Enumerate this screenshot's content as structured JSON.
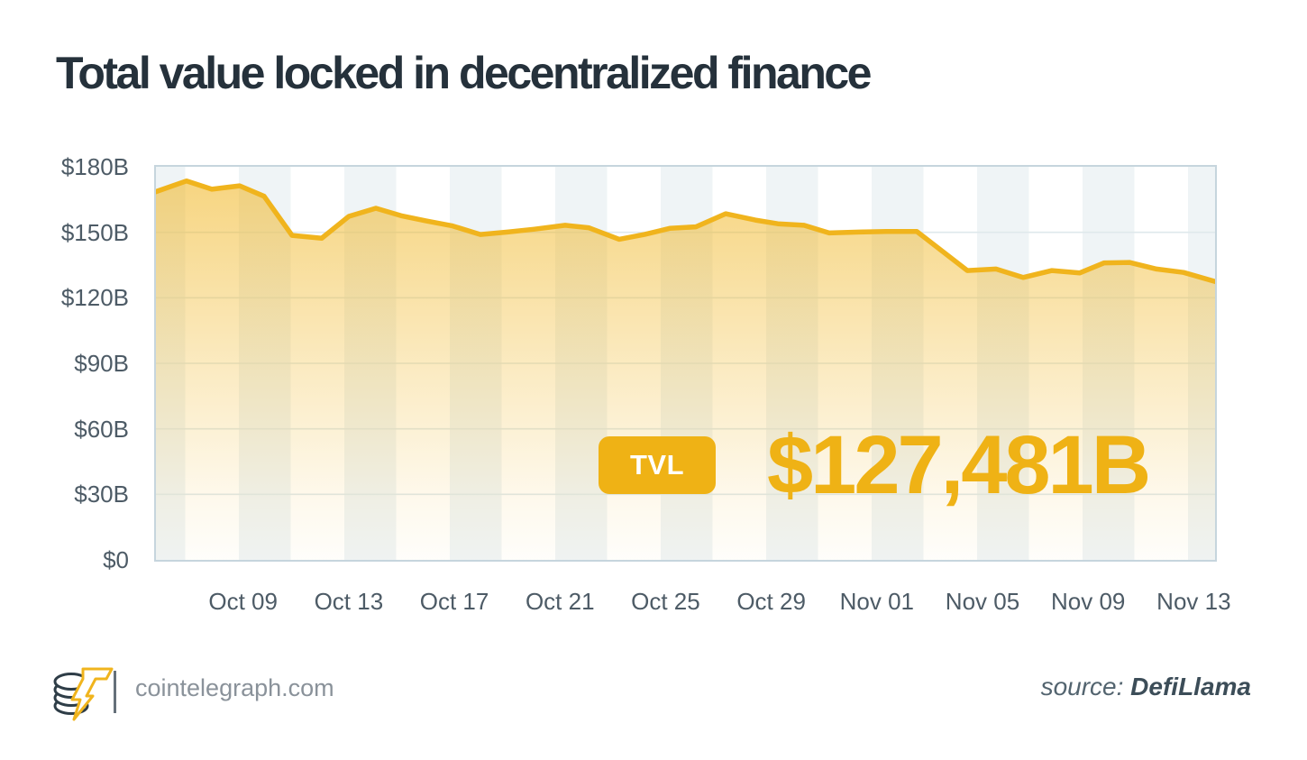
{
  "title": "Total value locked in decentralized finance",
  "tooltip": {
    "badge_label": "TVL",
    "value": "$127,481B"
  },
  "footer": {
    "site": "cointelegraph.com",
    "source_label": "source:",
    "source_name": "DefiLlama",
    "logo": "cointelegraph-coin-stack-lightning-logo"
  },
  "colors": {
    "accent_yellow": "#F0B41D",
    "badge_yellow": "#EFB215",
    "title_text": "#25313B",
    "axis_text": "#4D5B66",
    "plot_border": "#C6D5DD",
    "plot_stripe": "#EFF4F6",
    "gridline": "#DFE9EC",
    "footer_site_text": "#8A929A",
    "source_text": "#3C4D58"
  },
  "chart_data": {
    "type": "area",
    "title": "Total value locked in decentralized finance",
    "unit": "USD billions (B)",
    "series_name": "TVL",
    "final_value_label": "$127,481B",
    "xlabel": "",
    "ylabel": "",
    "ylim": [
      0,
      180
    ],
    "ytick_labels": [
      "$180B",
      "$150B",
      "$120B",
      "$90B",
      "$60B",
      "$30B",
      "$0"
    ],
    "ytick_values": [
      180,
      150,
      120,
      90,
      60,
      30,
      0
    ],
    "xtick_labels": [
      "Oct 09",
      "Oct 13",
      "Oct 17",
      "Oct 21",
      "Oct 25",
      "Oct 29",
      "Nov 01",
      "Nov 05",
      "Nov 09",
      "Nov 13"
    ],
    "x_range_note": "daily TVL from ~Oct 06 to ~Nov 14, values in $B estimated from plot",
    "grid": "horizontal gridlines at $30B steps; vertical alternating background stripes",
    "legend_position": "none",
    "points_format": "[fraction_of_x_axis, value_in_billions_USD]",
    "points": [
      [
        0.0,
        168.6
      ],
      [
        0.0289,
        173.5
      ],
      [
        0.0528,
        169.7
      ],
      [
        0.0791,
        171.3
      ],
      [
        0.1021,
        166.5
      ],
      [
        0.1285,
        148.6
      ],
      [
        0.1566,
        147.3
      ],
      [
        0.1821,
        157.3
      ],
      [
        0.2077,
        161.0
      ],
      [
        0.2315,
        157.6
      ],
      [
        0.2553,
        155.2
      ],
      [
        0.28,
        152.9
      ],
      [
        0.3064,
        149.0
      ],
      [
        0.3319,
        150.1
      ],
      [
        0.3566,
        151.4
      ],
      [
        0.3864,
        153.2
      ],
      [
        0.4085,
        152.1
      ],
      [
        0.4374,
        146.8
      ],
      [
        0.4613,
        149.0
      ],
      [
        0.4851,
        151.8
      ],
      [
        0.5098,
        152.5
      ],
      [
        0.5379,
        158.5
      ],
      [
        0.566,
        155.6
      ],
      [
        0.5872,
        153.9
      ],
      [
        0.6119,
        153.2
      ],
      [
        0.6357,
        149.7
      ],
      [
        0.6638,
        150.1
      ],
      [
        0.6894,
        150.4
      ],
      [
        0.7183,
        150.4
      ],
      [
        0.766,
        132.5
      ],
      [
        0.7932,
        133.2
      ],
      [
        0.8187,
        129.3
      ],
      [
        0.846,
        132.5
      ],
      [
        0.8723,
        131.4
      ],
      [
        0.8953,
        136.0
      ],
      [
        0.9191,
        136.2
      ],
      [
        0.9447,
        133.2
      ],
      [
        0.9702,
        131.6
      ],
      [
        1.0,
        127.481
      ]
    ]
  }
}
